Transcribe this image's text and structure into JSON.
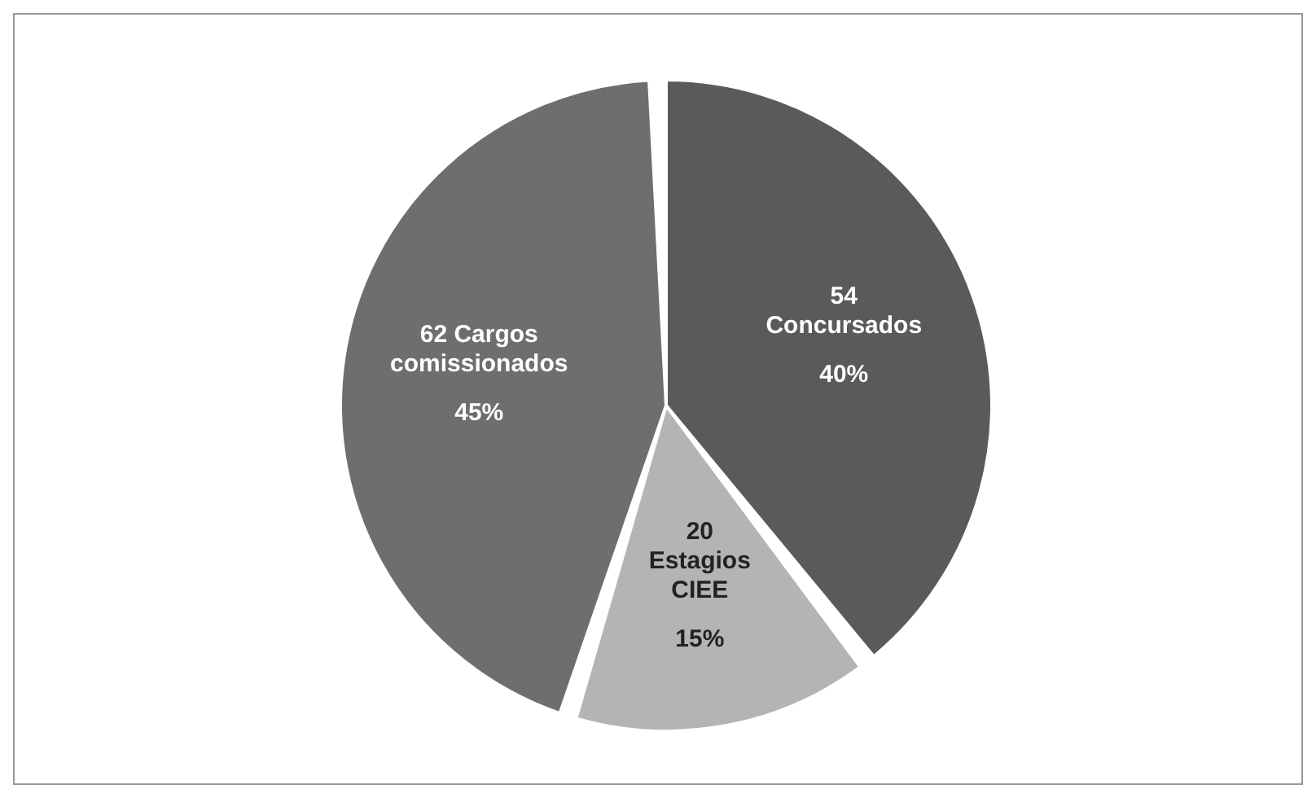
{
  "chart_data": {
    "type": "pie",
    "categories": [
      "54 Concursados",
      "20 Estagios CIEE",
      "62 Cargos comissionados"
    ],
    "values": [
      40,
      15,
      45
    ],
    "colors": [
      "#5a5a5a",
      "#b4b4b4",
      "#6e6e6e"
    ],
    "value_labels": [
      "40%",
      "15%",
      "45%"
    ]
  }
}
